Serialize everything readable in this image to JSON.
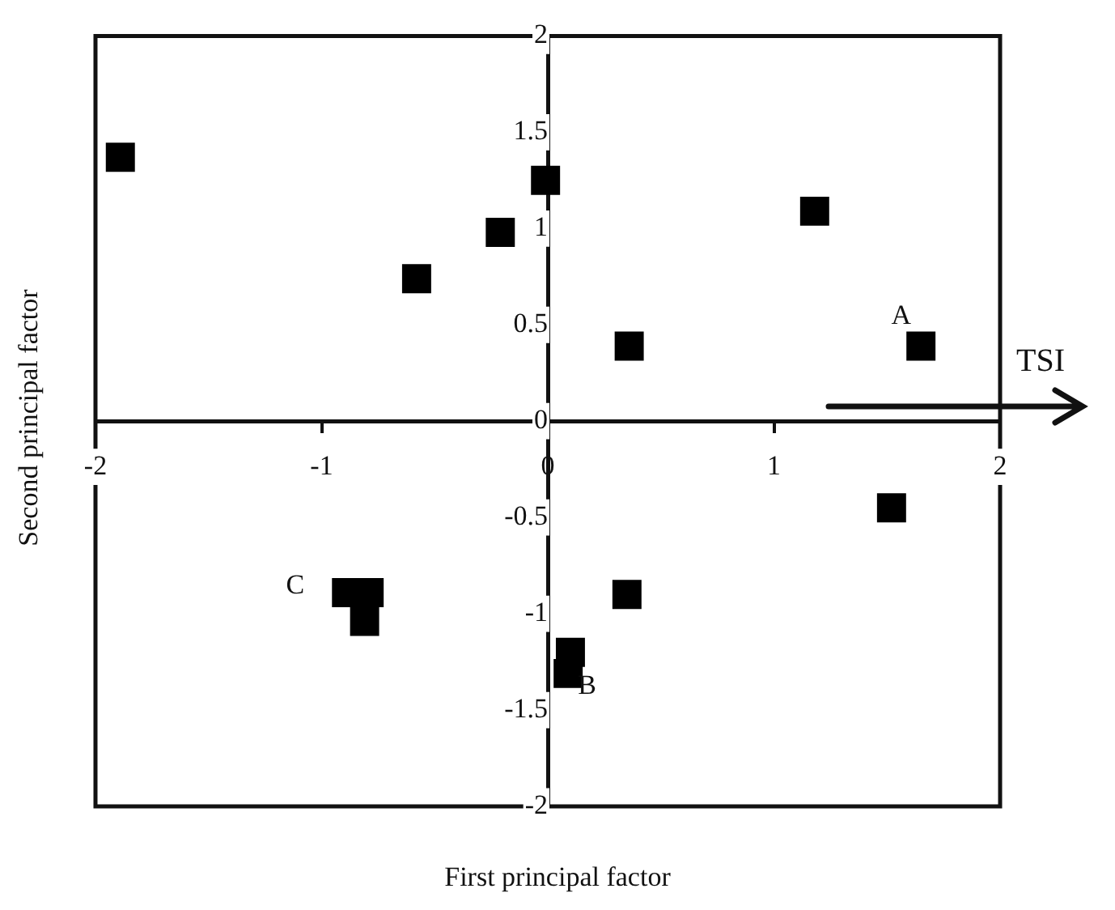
{
  "chart_data": {
    "type": "scatter",
    "xlabel": "First principal factor",
    "ylabel": "Second principal factor",
    "xlim": [
      -2,
      2
    ],
    "ylim": [
      -2,
      2
    ],
    "xticks": [
      -2,
      -1,
      0,
      1,
      2
    ],
    "yticks": [
      -2,
      -1.5,
      -1,
      -0.5,
      0,
      0.5,
      1,
      1.5,
      2
    ],
    "grid": false,
    "legend": false,
    "marker": "square",
    "series": [
      {
        "color": "#000000",
        "x": [
          -1.89,
          -0.01,
          -0.21,
          -0.58,
          1.18,
          0.36,
          1.65,
          1.52,
          0.35,
          0.1,
          0.09,
          -0.89,
          -0.79,
          -0.81
        ],
        "values": [
          1.37,
          1.25,
          0.98,
          0.74,
          1.09,
          0.39,
          0.39,
          -0.45,
          -0.9,
          -1.2,
          -1.31,
          -0.89,
          -0.89,
          -1.04
        ]
      }
    ],
    "annotations": [
      {
        "text": "A",
        "x": 1.65,
        "y": 0.39
      },
      {
        "text": "B",
        "x": 0.09,
        "y": -1.31
      },
      {
        "text": "C",
        "x": -0.89,
        "y": -0.89
      },
      "TSI"
    ]
  }
}
